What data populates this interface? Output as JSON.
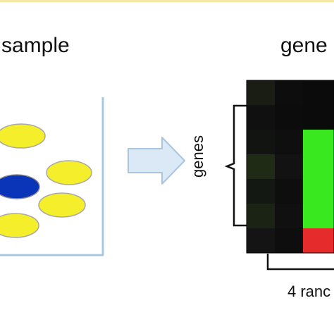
{
  "labels": {
    "sample": "sample",
    "gene": "gene",
    "genes": "genes",
    "random": "4 ranc"
  },
  "heatmap_rows": [
    [
      "#1a1d14",
      "#0d0d0d",
      "#0b0b0b"
    ],
    [
      "#101010",
      "#0c0c0c",
      "#0b0b0b"
    ],
    [
      "#121412",
      "#0f0f0f",
      "#39e81f"
    ],
    [
      "#1f2b14",
      "#121212",
      "#39e81f"
    ],
    [
      "#141812",
      "#0e0e0e",
      "#39e81f"
    ],
    [
      "#1a2314",
      "#101010",
      "#39e81f"
    ],
    [
      "#141414",
      "#0e0e0e",
      "#e52b2b"
    ]
  ],
  "colors": {
    "container_line": "#a8c8e0",
    "ellipse_yellow": "#f5ee2a",
    "ellipse_blue": "#0b35b8",
    "arrow_fill": "#dbe9f7",
    "arrow_stroke": "#a9c4de"
  }
}
